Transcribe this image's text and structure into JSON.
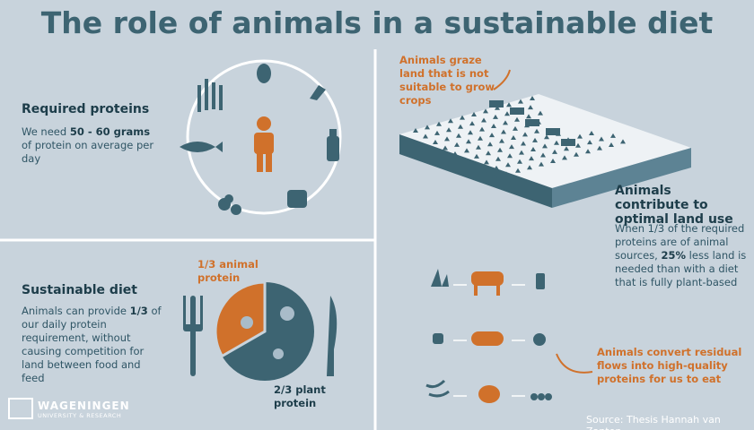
{
  "title": "The role of animals in a sustainable diet",
  "required_proteins": {
    "heading": "Required proteins",
    "text": [
      "We need ",
      "50 - 60 grams",
      " of protein on average per day"
    ]
  },
  "sustainable_diet": {
    "heading": "Sustainable diet",
    "text": [
      "Animals can provide ",
      "1/3",
      " of our daily protein requirement, without causing competition for land between food and feed"
    ],
    "animal_label": "1/3 animal protein",
    "plant_label": "2/3 plant protein"
  },
  "land_use": {
    "callout": "Animals graze land that is not suitable to grow crops",
    "heading": "Animals contribute to optimal land use",
    "text": [
      "When 1/3 of the required proteins are of animal sources, ",
      "25%",
      " less land is needed than with a diet that is fully plant-based"
    ]
  },
  "residual": {
    "callout": "Animals convert residual flows into high-quality proteins for us to eat"
  },
  "logo": {
    "name": "WAGENINGEN",
    "subtitle": "UNIVERSITY & RESEARCH"
  },
  "source": "Source: Thesis Hannah van Zanten"
}
